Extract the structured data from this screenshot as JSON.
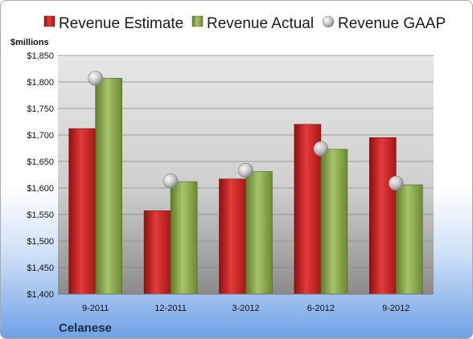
{
  "chart_data": {
    "type": "bar",
    "title": "",
    "unit_label": "$millions",
    "company": "Celanese",
    "categories": [
      "9-2011",
      "12-2011",
      "3-2012",
      "6-2012",
      "9-2012"
    ],
    "series": [
      {
        "name": "Revenue Estimate",
        "kind": "bar",
        "color": "#d42a2a",
        "values": [
          1712,
          1557,
          1617,
          1720,
          1695
        ]
      },
      {
        "name": "Revenue Actual",
        "kind": "bar",
        "color": "#8fac52",
        "values": [
          1807,
          1612,
          1631,
          1673,
          1606
        ]
      },
      {
        "name": "Revenue GAAP",
        "kind": "marker",
        "color": "#b8b8b8",
        "values": [
          1807,
          1613,
          1633,
          1674,
          1609
        ]
      }
    ],
    "ylim": [
      1400,
      1850
    ],
    "yticks": [
      "$1,400",
      "$1,450",
      "$1,500",
      "$1,550",
      "$1,600",
      "$1,650",
      "$1,700",
      "$1,750",
      "$1,800",
      "$1,850"
    ],
    "grid": true,
    "legend_position": "top"
  }
}
